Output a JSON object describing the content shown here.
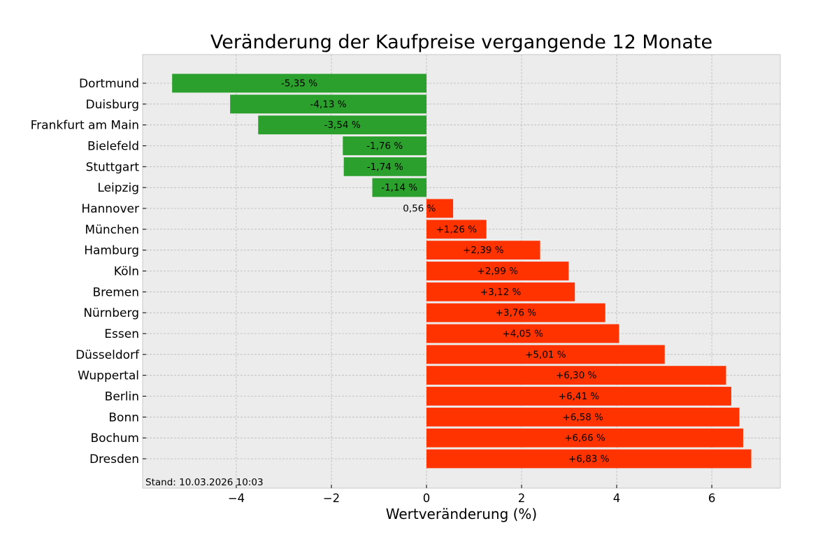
{
  "chart_data": {
    "type": "bar",
    "orientation": "horizontal",
    "title": "Veränderung der Kaufpreise vergangende 12 Monate",
    "xlabel": "Wertveränderung (%)",
    "ylabel": "",
    "xlim": [
      -5.97,
      7.44
    ],
    "xticks": [
      -4,
      -2,
      0,
      2,
      4,
      6
    ],
    "xtick_labels": [
      "−4",
      "−2",
      "0",
      "2",
      "4",
      "6"
    ],
    "grid": true,
    "annotation": "Stand: 10.03.2026 10:03",
    "colors": {
      "negative": "#2ca02c",
      "positive": "#ff3300",
      "background": "#ececec",
      "grid": "#b9b9b9"
    },
    "categories": [
      "Dortmund",
      "Duisburg",
      "Frankfurt am Main",
      "Bielefeld",
      "Stuttgart",
      "Leipzig",
      "Hannover",
      "München",
      "Hamburg",
      "Köln",
      "Bremen",
      "Nürnberg",
      "Essen",
      "Düsseldorf",
      "Wuppertal",
      "Berlin",
      "Bonn",
      "Bochum",
      "Dresden"
    ],
    "values": [
      -5.35,
      -4.13,
      -3.54,
      -1.76,
      -1.74,
      -1.14,
      0.56,
      1.26,
      2.39,
      2.99,
      3.12,
      3.76,
      4.05,
      5.01,
      6.3,
      6.41,
      6.58,
      6.66,
      6.83
    ],
    "data_labels": [
      "-5,35 %",
      "-4,13 %",
      "-3,54 %",
      "-1,76 %",
      "-1,74 %",
      "-1,14 %",
      "0,56 %",
      "+1,26 %",
      "+2,39 %",
      "+2,99 %",
      "+3,12 %",
      "+3,76 %",
      "+4,05 %",
      "+5,01 %",
      "+6,30 %",
      "+6,41 %",
      "+6,58 %",
      "+6,66 %",
      "+6,83 %"
    ],
    "label_positions": [
      -2.675,
      -2.065,
      -1.77,
      -0.88,
      -0.87,
      -0.57,
      -0.15,
      0.63,
      1.195,
      1.495,
      1.56,
      1.88,
      2.025,
      2.505,
      3.15,
      3.205,
      3.29,
      3.33,
      3.415
    ]
  }
}
